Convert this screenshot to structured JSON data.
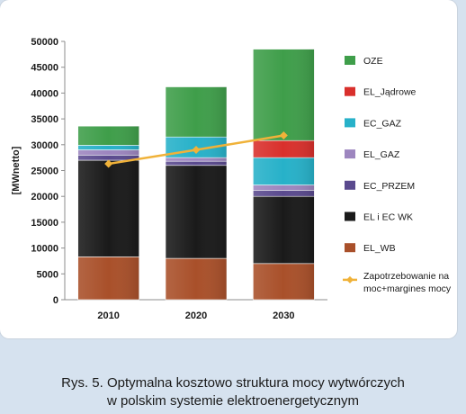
{
  "chart_data": {
    "type": "bar",
    "stacked": true,
    "categories": [
      "2010",
      "2020",
      "2030"
    ],
    "ylabel": "[MWnetto]",
    "ylim": [
      0,
      50000
    ],
    "yticks": [
      "0",
      "5000",
      "10000",
      "15000",
      "20000",
      "25000",
      "30000",
      "35000",
      "40000",
      "45000",
      "50000"
    ],
    "series": [
      {
        "name": "EL_WB",
        "color": "#a9502a",
        "values": [
          8300,
          8000,
          7000
        ]
      },
      {
        "name": "EL i EC WK",
        "color": "#1a1a1a",
        "values": [
          18700,
          18000,
          13000
        ]
      },
      {
        "name": "EC_PRZEM",
        "color": "#5a4a8e",
        "values": [
          1000,
          800,
          1200
        ]
      },
      {
        "name": "EL_GAZ",
        "color": "#9d86bf",
        "values": [
          1000,
          700,
          1000
        ]
      },
      {
        "name": "EC_GAZ",
        "color": "#27b1c9",
        "values": [
          900,
          4000,
          5300
        ]
      },
      {
        "name": "EL_Jądrowe",
        "color": "#d9302c",
        "values": [
          0,
          0,
          3300
        ]
      },
      {
        "name": "OZE",
        "color": "#3f9e4a",
        "values": [
          3700,
          9700,
          17700
        ]
      }
    ],
    "line": {
      "name": "Zapotrzebowanie na moc+margines mocy",
      "name_lines": [
        "Zapotrzebowanie na",
        "moc+margines mocy"
      ],
      "color": "#f0b239",
      "values": [
        26300,
        29000,
        31800
      ]
    },
    "legend_position": "right"
  },
  "caption": {
    "line1": "Rys. 5. Optymalna kosztowo struktura mocy wytwórczych",
    "line2": "w polskim systemie elektroenergetycznym"
  }
}
